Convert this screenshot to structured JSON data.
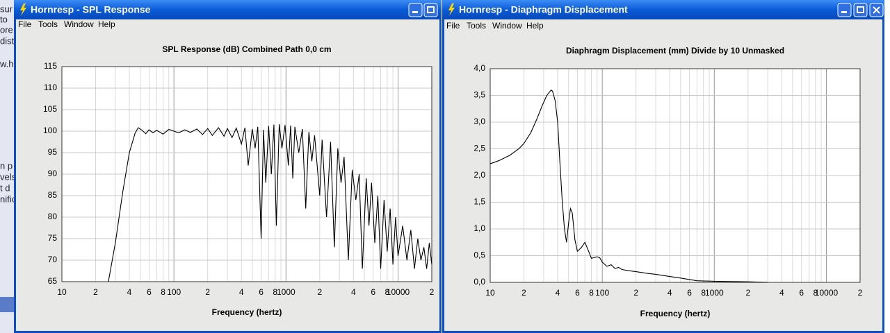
{
  "background_fragments": [
    "sur",
    "to",
    "ore",
    "dist",
    "w.hr",
    "n p",
    "vels",
    "t d",
    "nific"
  ],
  "windows": [
    {
      "title": "Hornresp - SPL Response",
      "menu": [
        "File",
        "Tools",
        "Window",
        "Help"
      ]
    },
    {
      "title": "Hornresp - Diaphragm Displacement",
      "menu": [
        "File",
        "Tools",
        "Window",
        "Help"
      ]
    }
  ],
  "chart_data": [
    {
      "type": "line",
      "title": "SPL Response (dB)   Combined   Path 0,0 cm",
      "xlabel": "Frequency (hertz)",
      "log_x": true,
      "grid": true,
      "color": "#000000",
      "xlim": [
        10,
        20000
      ],
      "xticks": [
        10,
        {
          "value": 20,
          "label": "2"
        },
        {
          "value": 40,
          "label": "4"
        },
        {
          "value": 60,
          "label": "6"
        },
        {
          "value": 80,
          "label": "8"
        },
        100,
        {
          "value": 200,
          "label": "2"
        },
        {
          "value": 400,
          "label": "4"
        },
        {
          "value": 600,
          "label": "6"
        },
        {
          "value": 800,
          "label": "8"
        },
        1000,
        {
          "value": 2000,
          "label": "2"
        },
        {
          "value": 4000,
          "label": "4"
        },
        {
          "value": 6000,
          "label": "6"
        },
        {
          "value": 8000,
          "label": "8"
        },
        10000,
        {
          "value": 20000,
          "label": "2"
        }
      ],
      "xminorticks": [
        30,
        50,
        70,
        90,
        300,
        500,
        700,
        900,
        3000,
        5000,
        7000,
        9000
      ],
      "ylim": [
        65,
        115
      ],
      "yticks": [
        65,
        70,
        75,
        80,
        85,
        90,
        95,
        100,
        105,
        110,
        115
      ],
      "x": [
        26,
        30,
        35,
        40,
        45,
        48,
        52,
        56,
        60,
        65,
        70,
        80,
        90,
        100,
        110,
        125,
        140,
        160,
        180,
        200,
        220,
        250,
        280,
        300,
        330,
        360,
        400,
        430,
        460,
        500,
        530,
        560,
        600,
        630,
        660,
        700,
        740,
        780,
        820,
        870,
        920,
        980,
        1050,
        1100,
        1150,
        1200,
        1300,
        1400,
        1500,
        1600,
        1700,
        1800,
        2000,
        2100,
        2300,
        2500,
        2700,
        2900,
        3100,
        3300,
        3600,
        3900,
        4200,
        4500,
        4800,
        5200,
        5500,
        5800,
        6200,
        6600,
        7000,
        7500,
        8000,
        8500,
        9000,
        9500,
        10000,
        11000,
        12000,
        13000,
        14000,
        15000,
        16000,
        17000,
        18000,
        19000,
        20000
      ],
      "values": [
        65,
        74,
        86,
        95,
        99.5,
        100.8,
        100.2,
        99.4,
        100.3,
        99.6,
        100.2,
        99.3,
        100.4,
        100,
        99.6,
        100.3,
        99.7,
        100.5,
        99.2,
        100.6,
        99,
        100.8,
        98.8,
        100.6,
        98.5,
        100.7,
        97,
        100.8,
        92,
        100.5,
        96,
        101,
        75,
        100.3,
        88,
        101.2,
        90,
        101.5,
        78,
        101.6,
        96,
        101.4,
        92,
        101.3,
        89,
        101,
        95,
        100.5,
        82,
        99.8,
        93,
        99,
        85,
        98,
        80,
        97.5,
        73,
        96,
        88,
        94,
        70,
        91,
        84,
        90,
        68,
        89,
        78,
        88,
        74,
        85,
        68,
        84,
        72,
        82,
        69,
        80,
        71,
        78,
        70,
        77,
        68,
        75,
        70,
        73,
        68,
        74,
        69
      ]
    },
    {
      "type": "line",
      "title": "Diaphragm Displacement (mm)   Divide by 10   Unmasked",
      "xlabel": "Frequency (hertz)",
      "log_x": true,
      "grid": true,
      "color": "#000000",
      "xlim": [
        10,
        20000
      ],
      "xticks": [
        10,
        {
          "value": 20,
          "label": "2"
        },
        {
          "value": 40,
          "label": "4"
        },
        {
          "value": 60,
          "label": "6"
        },
        {
          "value": 80,
          "label": "8"
        },
        100,
        {
          "value": 200,
          "label": "2"
        },
        {
          "value": 400,
          "label": "4"
        },
        {
          "value": 600,
          "label": "6"
        },
        {
          "value": 800,
          "label": "8"
        },
        1000,
        {
          "value": 2000,
          "label": "2"
        },
        {
          "value": 4000,
          "label": "4"
        },
        {
          "value": 6000,
          "label": "6"
        },
        {
          "value": 8000,
          "label": "8"
        },
        10000,
        {
          "value": 20000,
          "label": "2"
        }
      ],
      "xminorticks": [
        30,
        50,
        70,
        90,
        300,
        500,
        700,
        900,
        3000,
        5000,
        7000,
        9000
      ],
      "ylim": [
        0,
        4
      ],
      "yticks": [
        {
          "value": 0,
          "label": "0,0"
        },
        {
          "value": 0.5,
          "label": "0,5"
        },
        {
          "value": 1,
          "label": "1,0"
        },
        {
          "value": 1.5,
          "label": "1,5"
        },
        {
          "value": 2,
          "label": "2,0"
        },
        {
          "value": 2.5,
          "label": "2,5"
        },
        {
          "value": 3,
          "label": "3,0"
        },
        {
          "value": 3.5,
          "label": "3,5"
        },
        {
          "value": 4,
          "label": "4,0"
        }
      ],
      "x": [
        10,
        12,
        15,
        18,
        20,
        23,
        26,
        29,
        32,
        35,
        36,
        38,
        40,
        42,
        44,
        46,
        48,
        50,
        52,
        54,
        57,
        60,
        65,
        70,
        75,
        80,
        90,
        95,
        100,
        110,
        120,
        130,
        140,
        150,
        170,
        200,
        250,
        300,
        400,
        500,
        700,
        1000,
        2000,
        3000
      ],
      "values": [
        2.22,
        2.28,
        2.38,
        2.5,
        2.6,
        2.8,
        3.05,
        3.3,
        3.5,
        3.6,
        3.58,
        3.4,
        3.0,
        2.2,
        1.5,
        1.0,
        0.75,
        1.1,
        1.38,
        1.3,
        0.8,
        0.58,
        0.65,
        0.75,
        0.6,
        0.45,
        0.48,
        0.46,
        0.38,
        0.3,
        0.33,
        0.26,
        0.28,
        0.24,
        0.22,
        0.2,
        0.17,
        0.15,
        0.11,
        0.08,
        0.03,
        0.02,
        0.01,
        0
      ]
    }
  ]
}
